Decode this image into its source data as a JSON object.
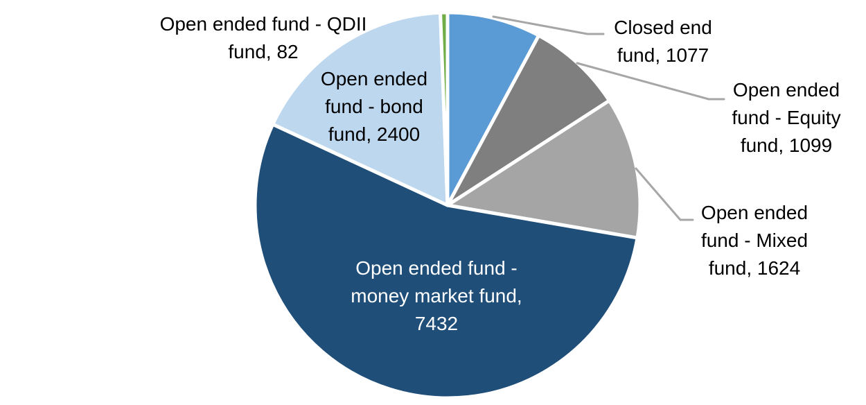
{
  "chart_data": {
    "type": "pie",
    "title": "",
    "legend": "none",
    "start_angle_deg": 0,
    "direction": "clockwise",
    "total": 13714,
    "background_color": "#FFFFFF",
    "slice_border_color": "#FFFFFF",
    "leader_line_color": "#A6A6A6",
    "slices": [
      {
        "name": "closed-end-fund",
        "category": "Closed end fund",
        "value": 1077,
        "color": "#5B9BD5",
        "label_placement": "outside-right"
      },
      {
        "name": "open-ended-equity-fund",
        "category": "Open ended fund - Equity fund",
        "value": 1099,
        "color": "#7F7F7F",
        "label_placement": "outside-right"
      },
      {
        "name": "open-ended-mixed-fund",
        "category": "Open ended fund - Mixed fund",
        "value": 1624,
        "color": "#A5A5A5",
        "label_placement": "outside-right"
      },
      {
        "name": "open-ended-money-market-fund",
        "category": "Open ended fund - money market fund",
        "value": 7432,
        "color": "#1F4E79",
        "label_placement": "inside"
      },
      {
        "name": "open-ended-bond-fund",
        "category": "Open ended fund - bond fund",
        "value": 2400,
        "color": "#BDD7EE",
        "label_placement": "inside"
      },
      {
        "name": "open-ended-qdii-fund",
        "category": "Open ended fund - QDII fund",
        "value": 82,
        "color": "#70AD47",
        "label_placement": "outside-left"
      }
    ],
    "data_labels_format": "category, value"
  },
  "labels": {
    "qdii": "Open ended fund - QDII\nfund, 82",
    "bond": "Open ended\nfund - bond\nfund, 2400",
    "money_market": "Open ended fund -\nmoney market fund,\n7432",
    "closed_end": "Closed end\nfund, 1077",
    "equity": "Open ended\nfund - Equity\nfund, 1099",
    "mixed": "Open ended\nfund - Mixed\nfund, 1624"
  }
}
